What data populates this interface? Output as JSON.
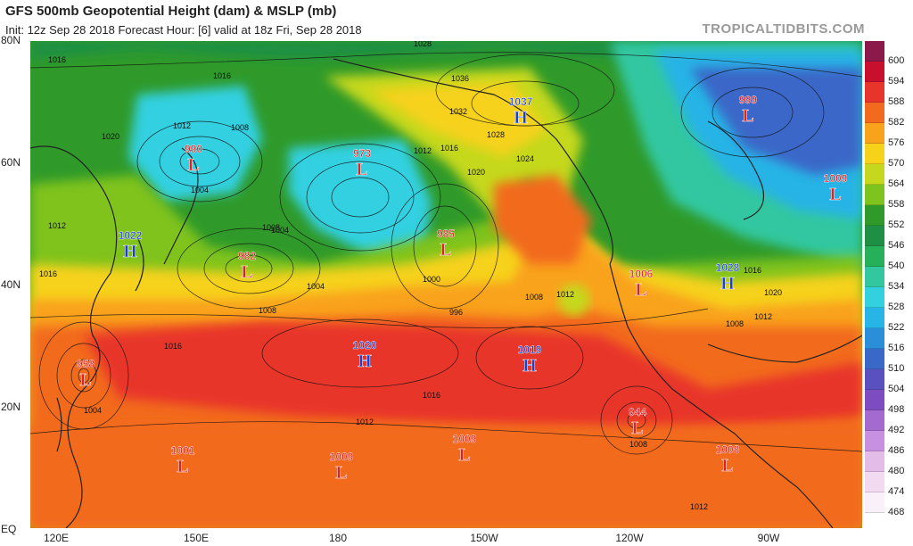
{
  "header": {
    "title": "GFS 500mb Geopotential Height (dam) & MSLP (mb)",
    "subtitle": "Init: 12z Sep 28 2018   Forecast Hour: [6]   valid at 18z Fri, Sep 28 2018",
    "brand": "TROPICALTIDBITS.COM"
  },
  "axes": {
    "lat_labels": [
      "80N",
      "60N",
      "40N",
      "20N",
      "EQ"
    ],
    "lon_labels": [
      "120E",
      "150E",
      "180",
      "150W",
      "120W",
      "90W"
    ]
  },
  "colorbar": {
    "levels": [
      "600",
      "594",
      "588",
      "582",
      "576",
      "570",
      "564",
      "558",
      "552",
      "546",
      "540",
      "534",
      "528",
      "522",
      "516",
      "510",
      "504",
      "498",
      "492",
      "486",
      "480",
      "474",
      "468"
    ],
    "colors": [
      "#8b1a4a",
      "#c8102e",
      "#e8352b",
      "#f26a1e",
      "#f9a21b",
      "#f6d21a",
      "#c5d81d",
      "#7fc31f",
      "#2f9a2a",
      "#1f8f45",
      "#26b05a",
      "#33c7a0",
      "#33d0e0",
      "#27b4e6",
      "#2a8fd8",
      "#3a68c8",
      "#5a50c0",
      "#7d4cc0",
      "#a46ad0",
      "#c890e0",
      "#e4bce8",
      "#f2dbf0",
      "#faf0fa"
    ]
  },
  "pressure_centers": [
    {
      "type": "L",
      "value": "990"
    },
    {
      "type": "L",
      "value": "973"
    },
    {
      "type": "H",
      "value": "1037"
    },
    {
      "type": "L",
      "value": "999"
    },
    {
      "type": "L",
      "value": "1009"
    },
    {
      "type": "H",
      "value": "1022"
    },
    {
      "type": "L",
      "value": "982"
    },
    {
      "type": "L",
      "value": "985"
    },
    {
      "type": "L",
      "value": "1006"
    },
    {
      "type": "H",
      "value": "1028"
    },
    {
      "type": "H",
      "value": "1020"
    },
    {
      "type": "H",
      "value": "1019"
    },
    {
      "type": "L",
      "value": "958"
    },
    {
      "type": "L",
      "value": "944"
    },
    {
      "type": "L",
      "value": "1001"
    },
    {
      "type": "L",
      "value": "1009"
    },
    {
      "type": "L",
      "value": "1009"
    },
    {
      "type": "L",
      "value": "1008"
    }
  ],
  "isobar_labels": [
    "1016",
    "1016",
    "1012",
    "1020",
    "1008",
    "1004",
    "1028",
    "1036",
    "1032",
    "1028",
    "1024",
    "1020",
    "1016",
    "1012",
    "1008",
    "1004",
    "1000",
    "996",
    "1016",
    "1012",
    "1008",
    "1004",
    "1016",
    "1016",
    "1012",
    "1008",
    "1004",
    "1012",
    "1008",
    "1020",
    "1016",
    "1012",
    "1008",
    "1004",
    "1012",
    "1008"
  ],
  "legend": {
    "L": "#e02020",
    "H": "#1a3fd0"
  }
}
